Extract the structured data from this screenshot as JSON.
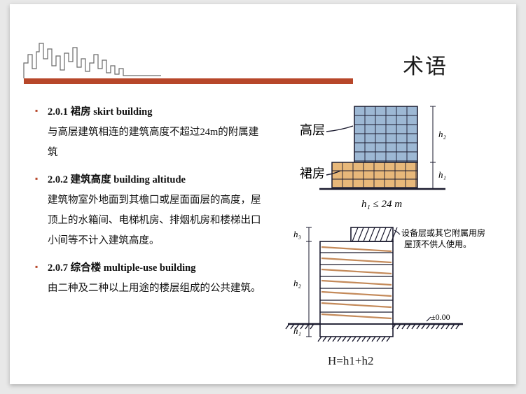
{
  "header": {
    "title": "术语",
    "bar_color": "#b7472a",
    "skyline_color": "#6a6a6a"
  },
  "terms": [
    {
      "code": "2.0.1",
      "name_cn": "裙房",
      "name_en": "skirt building",
      "definition": "与高层建筑相连的建筑高度不超过24m的附属建筑"
    },
    {
      "code": "2.0.2",
      "name_cn": "建筑高度",
      "name_en": "building altitude",
      "definition": "建筑物室外地面到其檐口或屋面面层的高度，屋顶上的水箱间、电梯机房、排烟机房和楼梯出口小间等不计入建筑高度。"
    },
    {
      "code": "2.0.7",
      "name_cn": "综合楼",
      "name_en": "multiple-use building",
      "definition": "由二种及二种以上用途的楼层组成的公共建筑。"
    }
  ],
  "diagrams": {
    "top": {
      "label_left_1": "高层",
      "label_left_2": "裙房",
      "label_right_h1": "h₁",
      "label_right_h2": "h₂",
      "formula": "h₁ ≤ 24 m",
      "colors": {
        "tower_fill": "#9db8d4",
        "podium_fill": "#e8b87a",
        "line": "#1a1a2e"
      }
    },
    "bottom": {
      "note_line1": "设备层或其它附属用房",
      "note_line2": "屋顶不供人使用。",
      "label_h1": "h₁",
      "label_h2": "h₂",
      "label_h3": "h₃",
      "ground_label": "±0.00",
      "caption": "H=h1+h2",
      "colors": {
        "hatch": "#c48a5a",
        "line": "#1a1a2e",
        "ground": "#1a1a2e"
      }
    }
  }
}
